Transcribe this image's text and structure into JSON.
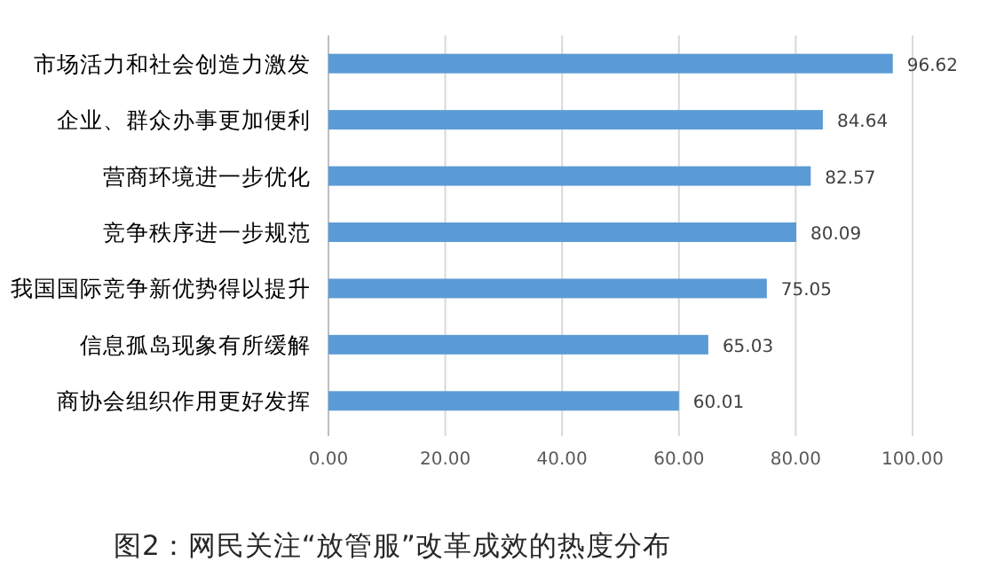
{
  "chart_data": {
    "type": "bar",
    "orientation": "horizontal",
    "title": "图2：网民关注“放管服”改革成效的热度分布",
    "categories": [
      "市场活力和社会创造力激发",
      "企业、群众办事更加便利",
      "营商环境进一步优化",
      "竞争秩序进一步规范",
      "我国国际竞争新优势得以提升",
      "信息孤岛现象有所缓解",
      "商协会组织作用更好发挥"
    ],
    "values": [
      96.62,
      84.64,
      82.57,
      80.09,
      75.05,
      65.03,
      60.01
    ],
    "color": "#5b9bd5",
    "xlim": [
      0,
      100
    ],
    "xticks": [
      {
        "value": 0,
        "label": "0.00"
      },
      {
        "value": 20,
        "label": "20.00"
      },
      {
        "value": 40,
        "label": "40.00"
      },
      {
        "value": 60,
        "label": "60.00"
      },
      {
        "value": 80,
        "label": "80.00"
      },
      {
        "value": 100,
        "label": "100.00"
      }
    ],
    "grid": "x",
    "data_labels": true
  }
}
